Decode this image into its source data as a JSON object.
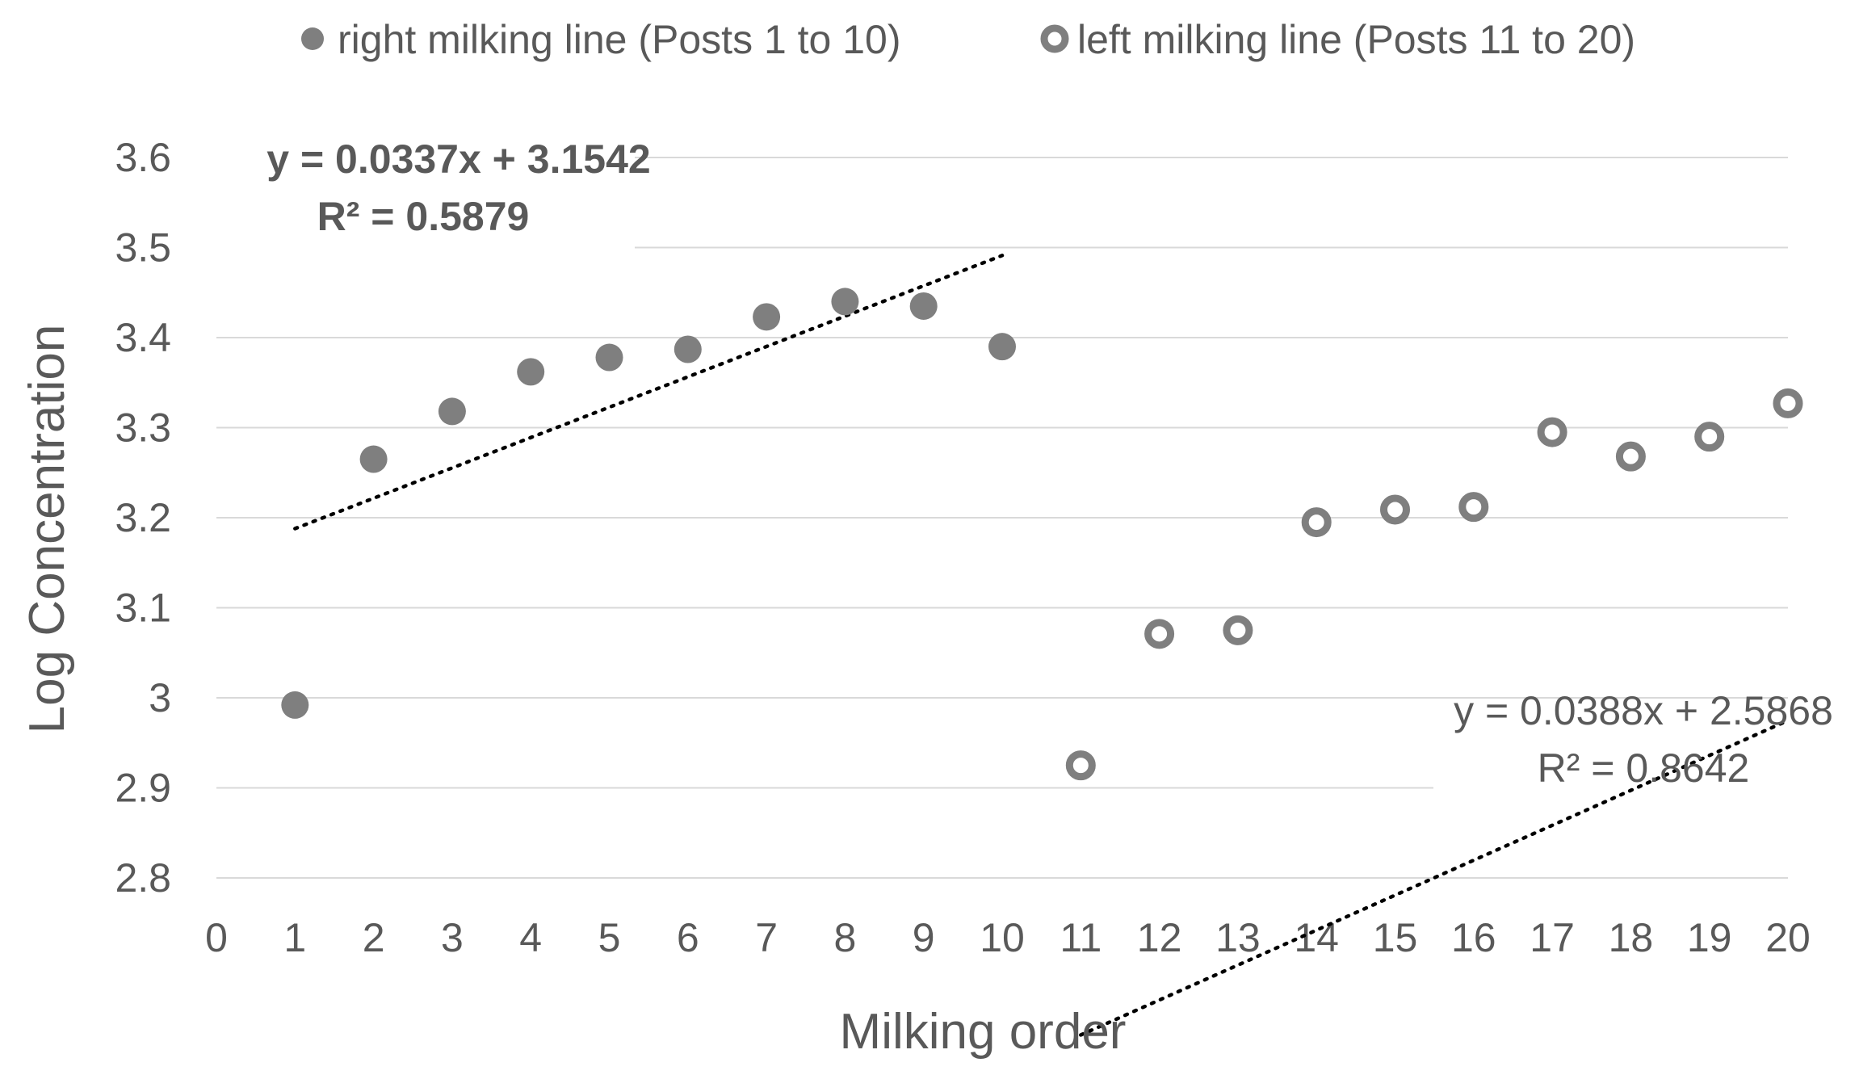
{
  "chart_data": {
    "type": "scatter",
    "title": "",
    "xlabel": "Milking order",
    "ylabel": "Log Concentration",
    "xlim": [
      0,
      20
    ],
    "ylim": [
      2.8,
      3.6
    ],
    "x_ticks": [
      "0",
      "1",
      "2",
      "3",
      "4",
      "5",
      "6",
      "7",
      "8",
      "9",
      "10",
      "11",
      "12",
      "13",
      "14",
      "15",
      "16",
      "17",
      "18",
      "19",
      "20"
    ],
    "y_ticks": [
      "2.8",
      "2.9",
      "3",
      "3.1",
      "3.2",
      "3.3",
      "3.4",
      "3.5",
      "3.6"
    ],
    "grid": true,
    "legend_position": "top",
    "series": [
      {
        "name": "right milking line (Posts 1 to 10)",
        "marker": "filled-circle",
        "color": "#7f7f7f",
        "x": [
          1,
          2,
          3,
          4,
          5,
          6,
          7,
          8,
          9,
          10
        ],
        "y": [
          2.992,
          3.265,
          3.318,
          3.362,
          3.378,
          3.387,
          3.423,
          3.44,
          3.435,
          3.39
        ],
        "trendline": {
          "slope": 0.0337,
          "intercept": 3.1542,
          "x_range": [
            1,
            10
          ]
        },
        "equation": "y = 0.0337x + 3.1542",
        "r_squared": "R² = 0.5879"
      },
      {
        "name": "left milking line (Posts 11 to 20)",
        "marker": "hollow-circle",
        "color": "#7f7f7f",
        "x": [
          11,
          12,
          13,
          14,
          15,
          16,
          17,
          18,
          19,
          20
        ],
        "y": [
          2.925,
          3.071,
          3.075,
          3.195,
          3.209,
          3.212,
          3.295,
          3.268,
          3.29,
          3.327
        ],
        "trendline": {
          "slope": 0.0388,
          "intercept": 2.5868,
          "x_range": [
            11,
            20
          ]
        },
        "equation": "y = 0.0388x + 2.5868",
        "r_squared": "R² = 0.8642"
      }
    ]
  }
}
